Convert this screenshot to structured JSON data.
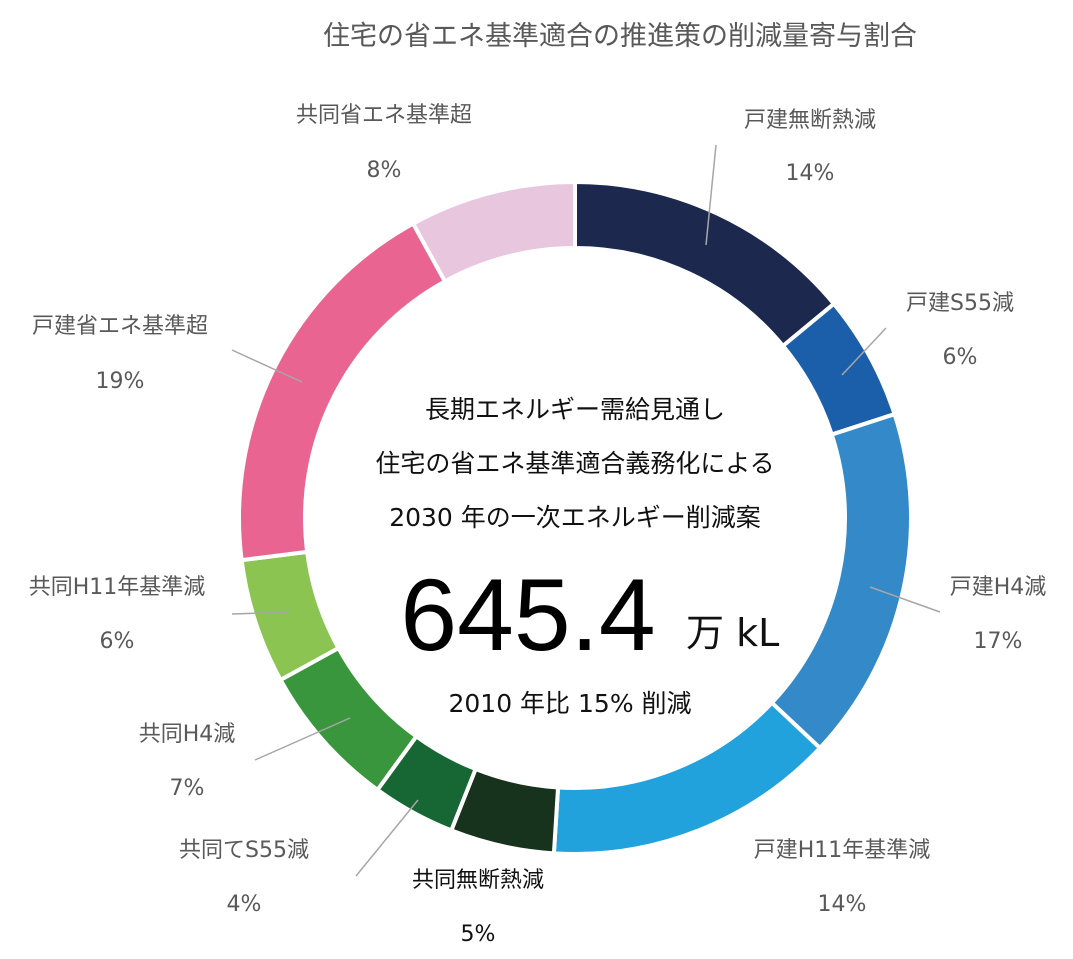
{
  "chart_data": {
    "type": "pie",
    "title": "住宅の省エネ基準適合の推進策の削減量寄与割合",
    "categories": [
      "戸建無断熱減",
      "戸建S55減",
      "戸建H4減",
      "戸建H11年基準減",
      "共同無断熱減",
      "共同てS55減",
      "共同H4減",
      "共同H11年基準減",
      "戸建省エネ基準超",
      "共同省エネ基準超"
    ],
    "values": [
      14,
      6,
      17,
      14,
      5,
      4,
      7,
      6,
      19,
      8
    ],
    "value_labels": [
      "14%",
      "6%",
      "17%",
      "14%",
      "5%",
      "4%",
      "7%",
      "6%",
      "19%",
      "8%"
    ],
    "colors": [
      "#1c284d",
      "#1b5faa",
      "#3489c8",
      "#22a2dc",
      "#18331d",
      "#176734",
      "#39963c",
      "#8cc452",
      "#e96490",
      "#e8c7de"
    ],
    "center": {
      "line1": "長期エネルギー需給見通し",
      "line2": "住宅の省エネ基準適合義務化による",
      "line3": "2030 年の一次エネルギー削減案",
      "value": "645.4",
      "unit": "万 kL",
      "note": "2010 年比 15% 削減"
    }
  }
}
